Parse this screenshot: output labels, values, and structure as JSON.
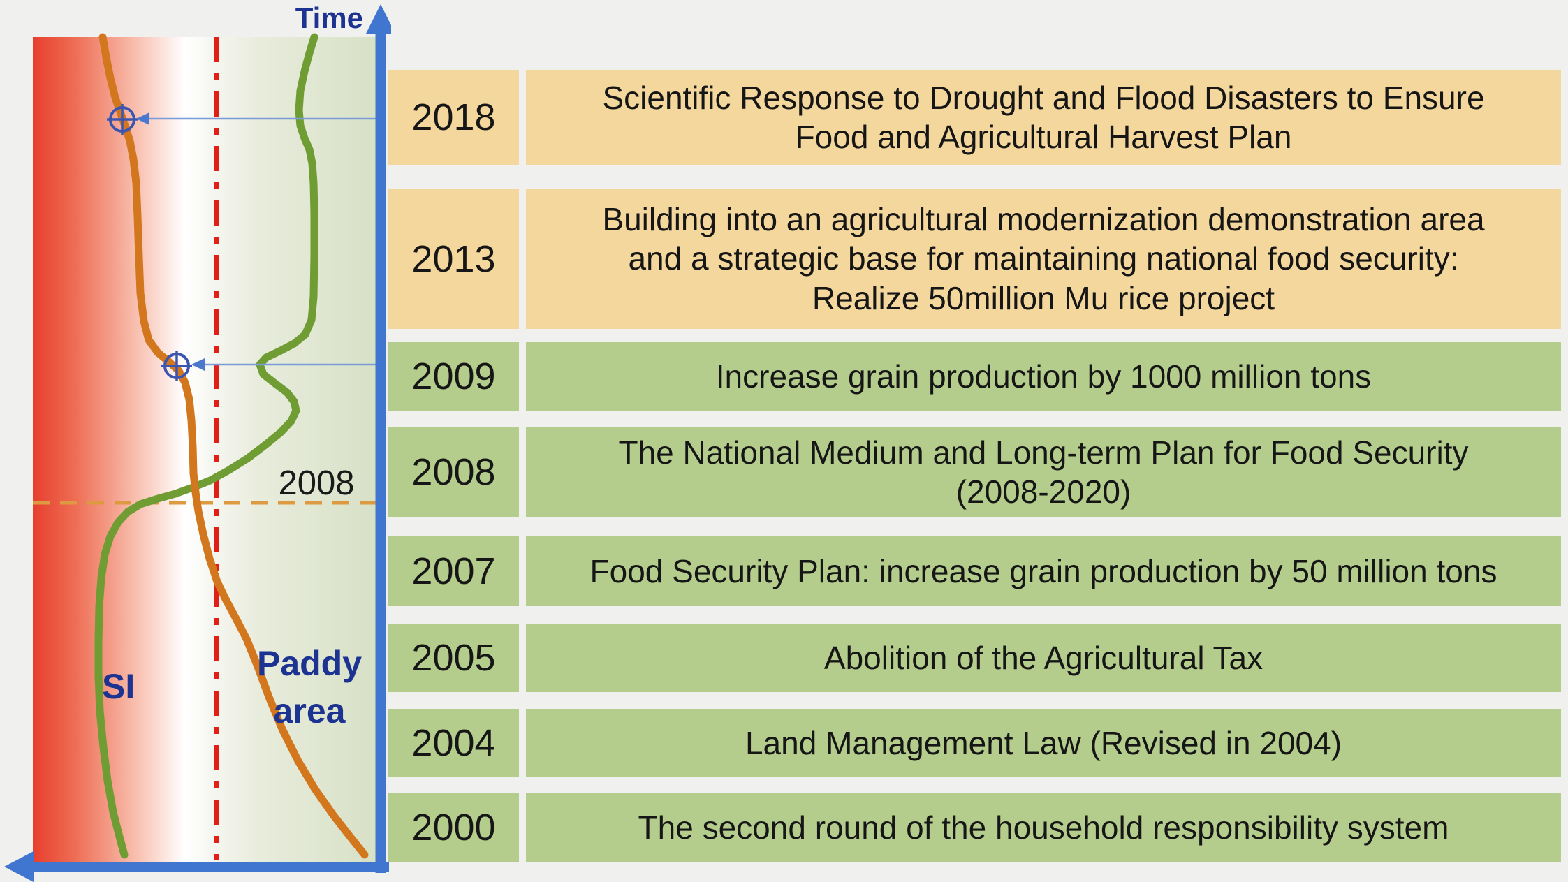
{
  "figure": {
    "time_axis_label": "Time",
    "si_curve_label": "SI",
    "paddy_curve_label_line1": "Paddy",
    "paddy_curve_label_line2": "area",
    "dashed_guideline_year_label": "2008"
  },
  "timeline": {
    "rows": [
      {
        "year": "2018",
        "theme": "tan",
        "text": "Scientific Response to Drought and Flood Disasters to Ensure Food and Agricultural Harvest Plan",
        "lines": [
          "Scientific Response to Drought and Flood Disasters to Ensure",
          "Food and Agricultural Harvest Plan"
        ]
      },
      {
        "year": "2013",
        "theme": "tan",
        "text": "Building into an agricultural modernization demonstration area and a strategic base for maintaining national food security: Realize 50million Mu rice project",
        "lines": [
          "Building into an agricultural modernization demonstration area",
          "and a strategic base for maintaining national food security:",
          "Realize 50million Mu rice project"
        ]
      },
      {
        "year": "2009",
        "theme": "green",
        "text": "Increase grain production by 1000 million tons",
        "lines": [
          "Increase grain production by 1000 million tons"
        ]
      },
      {
        "year": "2008",
        "theme": "green",
        "text": "The National Medium and Long-term Plan for Food Security (2008-2020)",
        "lines": [
          "The National Medium and Long-term Plan for Food Security",
          "(2008-2020)"
        ]
      },
      {
        "year": "2007",
        "theme": "green",
        "text": "Food Security Plan: increase grain production by 50 million tons",
        "lines": [
          "Food Security Plan: increase grain production by 50 million tons"
        ]
      },
      {
        "year": "2005",
        "theme": "green",
        "text": "Abolition of the Agricultural Tax",
        "lines": [
          "Abolition of the Agricultural Tax"
        ]
      },
      {
        "year": "2004",
        "theme": "green",
        "text": "Land Management Law (Revised in 2004)",
        "lines": [
          "Land Management Law (Revised in 2004)"
        ]
      },
      {
        "year": "2000",
        "theme": "green",
        "text": "The second round of the household responsibility system",
        "lines": [
          "The second round of the household responsibility system"
        ]
      }
    ]
  },
  "colors": {
    "page_bg": "#f0f0ee",
    "row_tan": "#f4d79c",
    "row_green": "#b4cd8d",
    "row_text": "#161616",
    "label_navy": "#1d3391",
    "axis_blue": "#4076cf",
    "connector_blue": "#7a9bd8",
    "marker_blue": "#3c55b0",
    "curve_orange": "#d2771e",
    "curve_green": "#6f9c33",
    "red_guideline": "#e02017",
    "orange_guideline": "#dd9a40",
    "plot_red": "#e73f2d",
    "plot_green_tint": "#d7e1c6"
  }
}
